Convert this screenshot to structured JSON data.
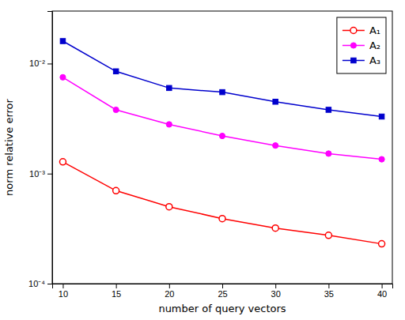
{
  "chart_data": {
    "type": "line",
    "xlabel": "number of query vectors",
    "ylabel": "norm relative error",
    "x": [
      10,
      15,
      20,
      25,
      30,
      35,
      40
    ],
    "series": [
      {
        "name": "A₁",
        "color": "#ff0000",
        "marker": "circle-open",
        "line_style": "solid",
        "values": [
          0.00128,
          0.0007,
          0.0005,
          0.00039,
          0.00032,
          0.000275,
          0.00023
        ]
      },
      {
        "name": "A₂",
        "color": "#ff00ff",
        "marker": "circle",
        "line_style": "solid",
        "values": [
          0.0075,
          0.0038,
          0.0028,
          0.0022,
          0.0018,
          0.00152,
          0.00135
        ]
      },
      {
        "name": "A₃",
        "color": "#0000cd",
        "marker": "square",
        "line_style": "solid",
        "values": [
          0.016,
          0.0085,
          0.006,
          0.0055,
          0.0045,
          0.0038,
          0.0033
        ]
      }
    ],
    "xlim": [
      9,
      41
    ],
    "xticks": [
      10,
      15,
      20,
      25,
      30,
      35,
      40
    ],
    "ylim": [
      0.0001,
      0.03
    ],
    "yticks": [
      {
        "value": 0.0001,
        "label": "10⁻⁴"
      },
      {
        "value": 0.001,
        "label": "10⁻³"
      },
      {
        "value": 0.01,
        "label": "10⁻²"
      }
    ],
    "log": "y",
    "grid": false,
    "legend": "upper right"
  }
}
